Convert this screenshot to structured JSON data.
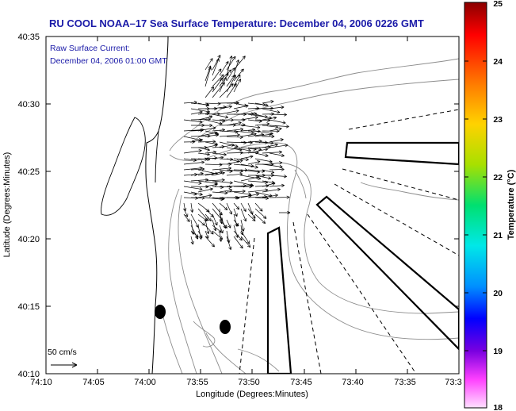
{
  "title": "RU COOL  NOAA–17  Sea Surface Temperature:  December 04, 2006 0226 GMT",
  "current_label": {
    "line1": "Raw Surface Current:",
    "line2": "December 04, 2006 01:00 GMT"
  },
  "axes": {
    "xlabel": "Longitude (Degrees:Minutes)",
    "ylabel": "Latitude (Degrees:Minutes)",
    "x_ticks": [
      "74:10",
      "74:05",
      "74:00",
      "73:55",
      "73:50",
      "73:45",
      "73:40",
      "73:35",
      "73:3"
    ],
    "y_ticks": [
      "40:35",
      "40:30",
      "40:25",
      "40:20",
      "40:15",
      "40:10"
    ]
  },
  "scale_label": "50 cm/s",
  "colorbar": {
    "label": "Temperature (°C)",
    "ticks": [
      "25",
      "24",
      "23",
      "22",
      "21",
      "20",
      "19",
      "18"
    ],
    "colors": [
      "#8a0000",
      "#ff0000",
      "#ff7a00",
      "#ffd200",
      "#a8e000",
      "#00e070",
      "#00e8e8",
      "#0090ff",
      "#0000ff",
      "#7a00e0",
      "#ff40ff",
      "#ffe0ff"
    ]
  },
  "legend_colors": {
    "title": "#1a1aa8",
    "frame": "#000000",
    "contour": "#8c8c8c"
  }
}
